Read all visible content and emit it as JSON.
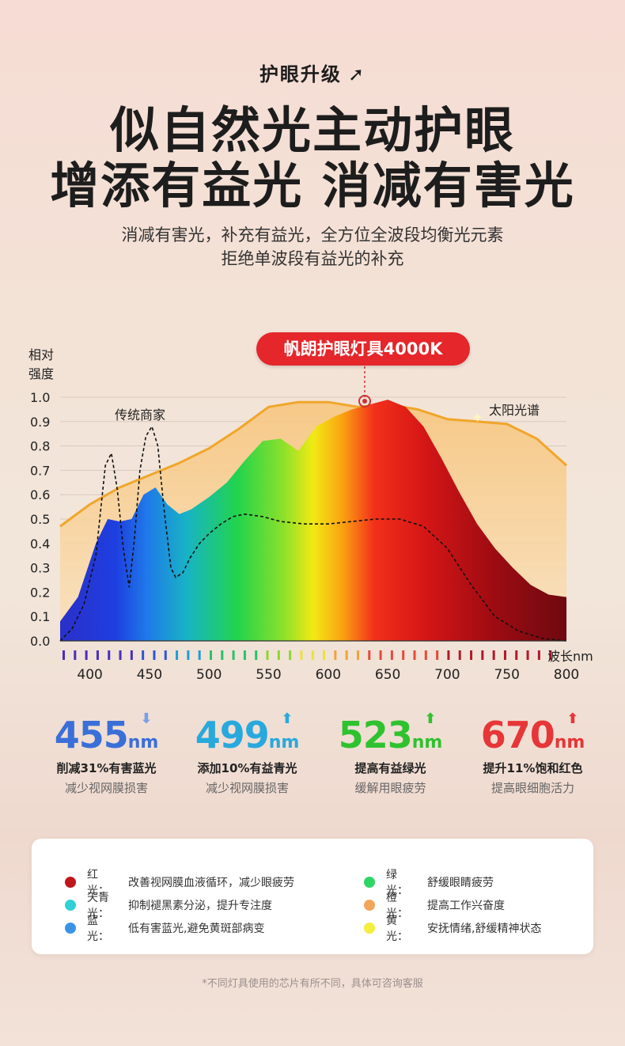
{
  "header": {
    "tagline": "护眼升级",
    "tagline_icon": "trend-up-arrow-icon",
    "line1": "似自然光主动护眼",
    "line2": "增添有益光 消减有害光",
    "sub1": "消减有害光，补充有益光，全方位全波段均衡光元素",
    "sub2": "拒绝单波段有益光的补充"
  },
  "badge": "帆朗护眼灯具4000K",
  "chart_data": {
    "type": "area",
    "ylabel": "相对强度",
    "xlabel": "波长nm",
    "xlim": [
      375,
      800
    ],
    "ylim": [
      0,
      1.0
    ],
    "x_ticks": [
      400,
      450,
      500,
      550,
      600,
      650,
      700,
      750,
      800
    ],
    "y_ticks": [
      "0.0",
      "0.1",
      "0.2",
      "0.3",
      "0.4",
      "0.5",
      "0.6",
      "0.7",
      "0.8",
      "0.9",
      "1.0"
    ],
    "grid": true,
    "series": [
      {
        "name": "太阳光谱",
        "style": "area-orange",
        "x": [
          375,
          400,
          425,
          450,
          475,
          500,
          525,
          550,
          575,
          600,
          625,
          650,
          675,
          700,
          725,
          750,
          775,
          800
        ],
        "y": [
          0.47,
          0.56,
          0.63,
          0.68,
          0.73,
          0.79,
          0.87,
          0.96,
          0.98,
          0.98,
          0.96,
          0.97,
          0.95,
          0.91,
          0.9,
          0.89,
          0.83,
          0.72
        ]
      },
      {
        "name": "帆朗护眼灯具4000K",
        "style": "area-spectrum",
        "x": [
          375,
          390,
          405,
          415,
          425,
          435,
          445,
          455,
          465,
          475,
          485,
          500,
          515,
          530,
          545,
          560,
          575,
          590,
          605,
          620,
          635,
          650,
          665,
          680,
          695,
          710,
          725,
          740,
          755,
          770,
          785,
          800
        ],
        "y": [
          0.08,
          0.18,
          0.4,
          0.5,
          0.49,
          0.5,
          0.6,
          0.63,
          0.56,
          0.52,
          0.54,
          0.59,
          0.65,
          0.74,
          0.82,
          0.83,
          0.78,
          0.88,
          0.92,
          0.95,
          0.97,
          0.99,
          0.96,
          0.88,
          0.75,
          0.61,
          0.48,
          0.38,
          0.3,
          0.23,
          0.19,
          0.18
        ]
      },
      {
        "name": "传统商家",
        "style": "dashed",
        "x": [
          375,
          385,
          395,
          405,
          413,
          418,
          423,
          428,
          433,
          437,
          442,
          447,
          452,
          457,
          462,
          468,
          472,
          478,
          484,
          492,
          500,
          510,
          520,
          530,
          545,
          560,
          580,
          600,
          620,
          640,
          660,
          680,
          700,
          720,
          740,
          760,
          780,
          800
        ],
        "y": [
          0.0,
          0.05,
          0.15,
          0.35,
          0.72,
          0.77,
          0.62,
          0.38,
          0.22,
          0.4,
          0.7,
          0.84,
          0.88,
          0.8,
          0.55,
          0.3,
          0.26,
          0.28,
          0.34,
          0.4,
          0.44,
          0.48,
          0.51,
          0.52,
          0.51,
          0.49,
          0.48,
          0.48,
          0.49,
          0.5,
          0.5,
          0.47,
          0.38,
          0.23,
          0.1,
          0.04,
          0.01,
          0.0
        ]
      }
    ],
    "annotations": [
      "传统商家",
      "太阳光谱"
    ]
  },
  "stats": [
    {
      "value": "455",
      "unit": "nm",
      "dir": "down",
      "color": "#3b6fd8",
      "arrow_color": "#7a9ee8",
      "line1": "削减31%有害蓝光",
      "line2": "减少视网膜损害"
    },
    {
      "value": "499",
      "unit": "nm",
      "dir": "up",
      "color": "#28a9dd",
      "arrow_color": "#28a9dd",
      "line1": "添加10%有益青光",
      "line2": "减少视网膜损害"
    },
    {
      "value": "523",
      "unit": "nm",
      "dir": "up",
      "color": "#2fc22f",
      "arrow_color": "#2fc22f",
      "line1": "提高有益绿光",
      "line2": "缓解用眼疲劳"
    },
    {
      "value": "670",
      "unit": "nm",
      "dir": "up",
      "color": "#e63638",
      "arrow_color": "#e63638",
      "line1": "提升11%饱和红色",
      "line2": "提高眼细胞活力"
    }
  ],
  "legend": [
    {
      "name": "红　光：",
      "desc": "改善视网膜血液循环，减少眼疲劳",
      "color": "#c0161c"
    },
    {
      "name": "绿　光：",
      "desc": "舒缓眼睛疲劳",
      "color": "#2fd667"
    },
    {
      "name": "天青光：",
      "desc": "抑制褪黑素分泌，提升专注度",
      "color": "#2fd1d4"
    },
    {
      "name": "橙　光：",
      "desc": "提高工作兴奋度",
      "color": "#f2a65a"
    },
    {
      "name": "蓝　光：",
      "desc": "低有害蓝光,避免黄斑部病变",
      "color": "#3a94e6"
    },
    {
      "name": "黄　光：",
      "desc": "安抚情绪,舒缓精神状态",
      "color": "#f4ee3e"
    }
  ],
  "footnote": "*不同灯具使用的芯片有所不同，具体可咨询客服"
}
